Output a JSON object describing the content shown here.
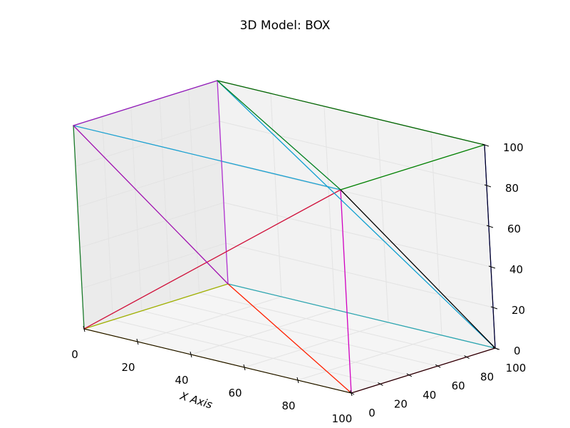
{
  "chart_data": {
    "type": "3d-wireframe",
    "title": "3D Model: BOX",
    "xlabel": "X Axis",
    "ylabel": "",
    "zlabel": "",
    "xlim": [
      0,
      100
    ],
    "ylim": [
      0,
      100
    ],
    "zlim": [
      0,
      100
    ],
    "xticks": [
      "0",
      "20",
      "40",
      "60",
      "80",
      "100"
    ],
    "yticks": [
      "0",
      "20",
      "40",
      "60",
      "80",
      "100"
    ],
    "zticks": [
      "0",
      "20",
      "40",
      "60",
      "80",
      "100"
    ],
    "grid": true,
    "edges": [
      {
        "from": [
          0,
          0,
          0
        ],
        "to": [
          100,
          0,
          0
        ],
        "color": "#d4a017"
      },
      {
        "from": [
          100,
          0,
          0
        ],
        "to": [
          100,
          100,
          0
        ],
        "color": "#e0102a"
      },
      {
        "from": [
          0,
          100,
          0
        ],
        "to": [
          100,
          100,
          0
        ],
        "color": "#2aa5b0"
      },
      {
        "from": [
          0,
          0,
          0
        ],
        "to": [
          0,
          100,
          0
        ],
        "color": "#a0b000"
      },
      {
        "from": [
          0,
          0,
          100
        ],
        "to": [
          100,
          0,
          100
        ],
        "color": "#1aa0d0"
      },
      {
        "from": [
          100,
          0,
          100
        ],
        "to": [
          100,
          100,
          100
        ],
        "color": "#008000"
      },
      {
        "from": [
          0,
          100,
          100
        ],
        "to": [
          100,
          100,
          100
        ],
        "color": "#006400"
      },
      {
        "from": [
          0,
          0,
          100
        ],
        "to": [
          0,
          100,
          100
        ],
        "color": "#9018b8"
      },
      {
        "from": [
          0,
          0,
          0
        ],
        "to": [
          0,
          0,
          100
        ],
        "color": "#1a7a2a"
      },
      {
        "from": [
          100,
          0,
          0
        ],
        "to": [
          100,
          0,
          100
        ],
        "color": "#d000c0"
      },
      {
        "from": [
          100,
          100,
          0
        ],
        "to": [
          100,
          100,
          100
        ],
        "color": "#0000cc"
      },
      {
        "from": [
          0,
          100,
          0
        ],
        "to": [
          0,
          100,
          100
        ],
        "color": "#b030d0"
      },
      {
        "from": [
          0,
          0,
          0
        ],
        "to": [
          100,
          0,
          100
        ],
        "color": "#d0103a"
      },
      {
        "from": [
          100,
          0,
          0
        ],
        "to": [
          0,
          100,
          0
        ],
        "color": "#ff2000"
      },
      {
        "from": [
          0,
          0,
          100
        ],
        "to": [
          0,
          100,
          0
        ],
        "color": "#a010b0"
      },
      {
        "from": [
          0,
          100,
          100
        ],
        "to": [
          100,
          100,
          0
        ],
        "color": "#10a0d0"
      },
      {
        "from": [
          100,
          0,
          100
        ],
        "to": [
          100,
          100,
          0
        ],
        "color": "#000000"
      },
      {
        "from": [
          100,
          0,
          100
        ],
        "to": [
          0,
          100,
          100
        ],
        "color": "#008020"
      }
    ]
  }
}
